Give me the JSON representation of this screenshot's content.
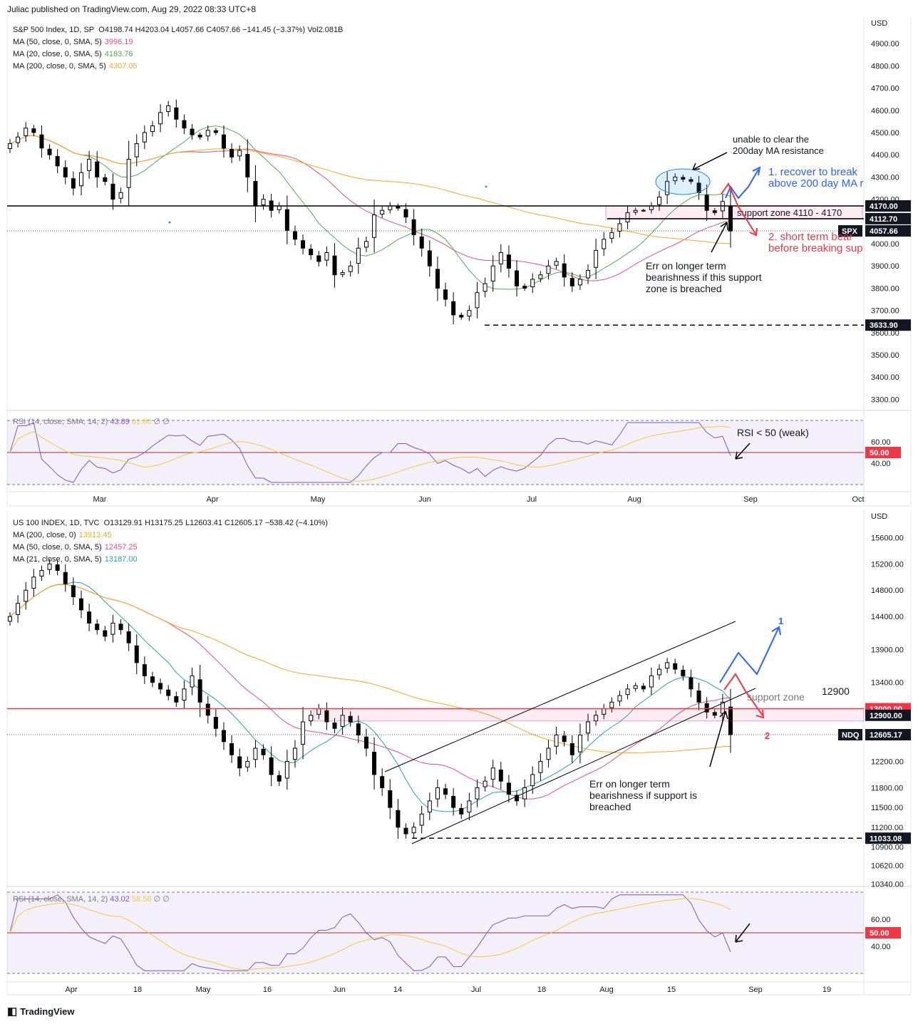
{
  "header": "Juliac published on TradingView.com, Aug 29, 2022 08:33 UTC+8",
  "footer": {
    "icon": "tradingview-logo-icon",
    "text": "TradingView"
  },
  "chart_data": [
    {
      "type": "candlestick",
      "title": "S&P 500 Index, 1D, SP",
      "ohlc_summary": "O4198.74  H4203.04  L4057.66  C4057.66  −141.45 (−3.37%)  Vol2.081B",
      "currency": "USD",
      "symbol": "SPX",
      "last_price": "4057.66",
      "moving_averages": [
        {
          "name": "MA (50, close, 0, SMA, 5)",
          "value": "3996.19",
          "color": "#e2517a"
        },
        {
          "name": "MA (20, close, 0, SMA, 5)",
          "value": "4183.76",
          "color": "#4caf50"
        },
        {
          "name": "MA (200, close, 0, SMA, 5)",
          "value": "4307.05",
          "color": "#f5a623"
        }
      ],
      "y_ticks": [
        "4900.00",
        "4800.00",
        "4700.00",
        "4600.00",
        "4500.00",
        "4400.00",
        "4300.00",
        "4200.00",
        "4000.00",
        "3900.00",
        "3800.00",
        "3700.00",
        "3600.00",
        "3500.00",
        "3400.00",
        "3300.00"
      ],
      "ylim": [
        3250,
        5000
      ],
      "price_labels": [
        {
          "text": "4170.00",
          "value": 4170,
          "style": "dark"
        },
        {
          "text": "4112.70",
          "value": 4112.7,
          "style": "dark"
        },
        {
          "text": "4057.66",
          "value": 4057.66,
          "style": "dark"
        },
        {
          "text": "3633.90",
          "value": 3633.9,
          "style": "dark"
        }
      ],
      "candles_close": [
        4450,
        4480,
        4520,
        4500,
        4430,
        4400,
        4350,
        4300,
        4250,
        4320,
        4380,
        4300,
        4280,
        4200,
        4230,
        4380,
        4450,
        4500,
        4530,
        4590,
        4620,
        4560,
        4520,
        4490,
        4480,
        4510,
        4500,
        4430,
        4390,
        4420,
        4300,
        4170,
        4200,
        4150,
        4170,
        4060,
        4020,
        3980,
        3950,
        3920,
        3960,
        3860,
        3870,
        3900,
        3980,
        4010,
        4130,
        4150,
        4170,
        4160,
        4120,
        4040,
        3980,
        3900,
        3800,
        3750,
        3680,
        3670,
        3700,
        3780,
        3820,
        3900,
        3960,
        3890,
        3810,
        3800,
        3840,
        3860,
        3900,
        3920,
        3850,
        3810,
        3840,
        3880,
        3970,
        4020,
        4050,
        4090,
        4140,
        4150,
        4150,
        4170,
        4210,
        4280,
        4300,
        4290,
        4280,
        4230,
        4150,
        4140,
        4190,
        4057
      ],
      "series_ma_note": "MA lines overlayed",
      "annotations": [
        {
          "text": "unable to clear the\n200day MA resistance",
          "color": "#131722"
        },
        {
          "text": "1. recover to break\nabove 200 day MA r",
          "color": "#2962ff"
        },
        {
          "text": "support zone 4110 - 4170",
          "color": "#131722"
        },
        {
          "text": "2. short term bear\nbefore breaking sup",
          "color": "#f23645"
        },
        {
          "text": "Err on longer term\nbearishness if this support\nzone is breached",
          "color": "#131722"
        }
      ],
      "x_ticks": [
        "Mar",
        "Apr",
        "May",
        "Jun",
        "Jul",
        "Aug",
        "Sep",
        "Oct"
      ],
      "rsi": {
        "label": "RSI (14, close, SMA, 14, 2)",
        "value": "43.89",
        "sma_value": "61.80",
        "extra": "∅ ∅",
        "y_ticks": [
          "60.00",
          "40.00"
        ],
        "level_label": "50.00",
        "annotation": "RSI < 50 (weak)"
      }
    },
    {
      "type": "candlestick",
      "title": "US 100 INDEX, 1D, TVC",
      "ohlc_summary": "O13129.91  H13175.25  L12603.41  C12605.17  −538.42 (−4.10%)",
      "currency": "USD",
      "symbol": "NDQ",
      "last_price": "12605.17",
      "moving_averages": [
        {
          "name": "MA (200, close, 0)",
          "value": "13913.45",
          "color": "#f5a623"
        },
        {
          "name": "MA (50, close, 0, SMA, 5)",
          "value": "12457.25",
          "color": "#e2517a"
        },
        {
          "name": "MA (21, close, 0, SMA, 5)",
          "value": "13187.00",
          "color": "#26a69a"
        }
      ],
      "y_ticks": [
        "15600.00",
        "15200.00",
        "14800.00",
        "14400.00",
        "13900.00",
        "13400.00",
        "12200.00",
        "11800.00",
        "11500.00",
        "11200.00",
        "10900.00",
        "10620.00",
        "10340.00"
      ],
      "price_labels": [
        {
          "text": "13000.00",
          "value": 13000,
          "style": "red"
        },
        {
          "text": "12900.00",
          "value": 12900,
          "style": "dark"
        },
        {
          "text": "12605.17",
          "value": 12605.17,
          "style": "dark"
        },
        {
          "text": "11033.08",
          "value": 11033.08,
          "style": "dark"
        }
      ],
      "candles_close": [
        14400,
        14600,
        14800,
        15000,
        15100,
        15200,
        15100,
        14900,
        14700,
        14500,
        14300,
        14200,
        14100,
        14300,
        14200,
        14000,
        13700,
        13500,
        13400,
        13300,
        13200,
        13100,
        13300,
        13500,
        13100,
        12900,
        12700,
        12500,
        12300,
        12100,
        12200,
        12400,
        12300,
        12000,
        11900,
        12200,
        12400,
        12800,
        12900,
        13000,
        12800,
        12700,
        12900,
        12800,
        12600,
        12400,
        12000,
        11800,
        11500,
        11200,
        11100,
        11200,
        11400,
        11600,
        11800,
        11700,
        11500,
        11400,
        11600,
        11800,
        11900,
        12100,
        11900,
        11700,
        11600,
        11800,
        12000,
        12200,
        12400,
        12600,
        12500,
        12300,
        12600,
        12800,
        12900,
        13000,
        13100,
        13200,
        13300,
        13350,
        13300,
        13500,
        13600,
        13700,
        13600,
        13500,
        13300,
        13100,
        12950,
        12900,
        13100,
        12605
      ],
      "annotations": [
        {
          "text": "12900",
          "color": "#131722"
        },
        {
          "text": "support zone",
          "color": "#787b86"
        },
        {
          "text": "1",
          "color": "#2962ff"
        },
        {
          "text": "2",
          "color": "#f23645"
        },
        {
          "text": "Err on longer term\nbearishness if support is\nbreached",
          "color": "#131722"
        }
      ],
      "x_ticks": [
        "Apr",
        "18",
        "May",
        "16",
        "Jun",
        "14",
        "Jul",
        "18",
        "Aug",
        "15",
        "Sep",
        "19"
      ],
      "rsi": {
        "label": "RSI (14, close, SMA, 14, 2)",
        "value": "43.02",
        "sma_value": "58.58",
        "extra": "∅ ∅",
        "y_ticks": [
          "60.00",
          "40.00"
        ],
        "level_label": "50.00"
      }
    }
  ]
}
